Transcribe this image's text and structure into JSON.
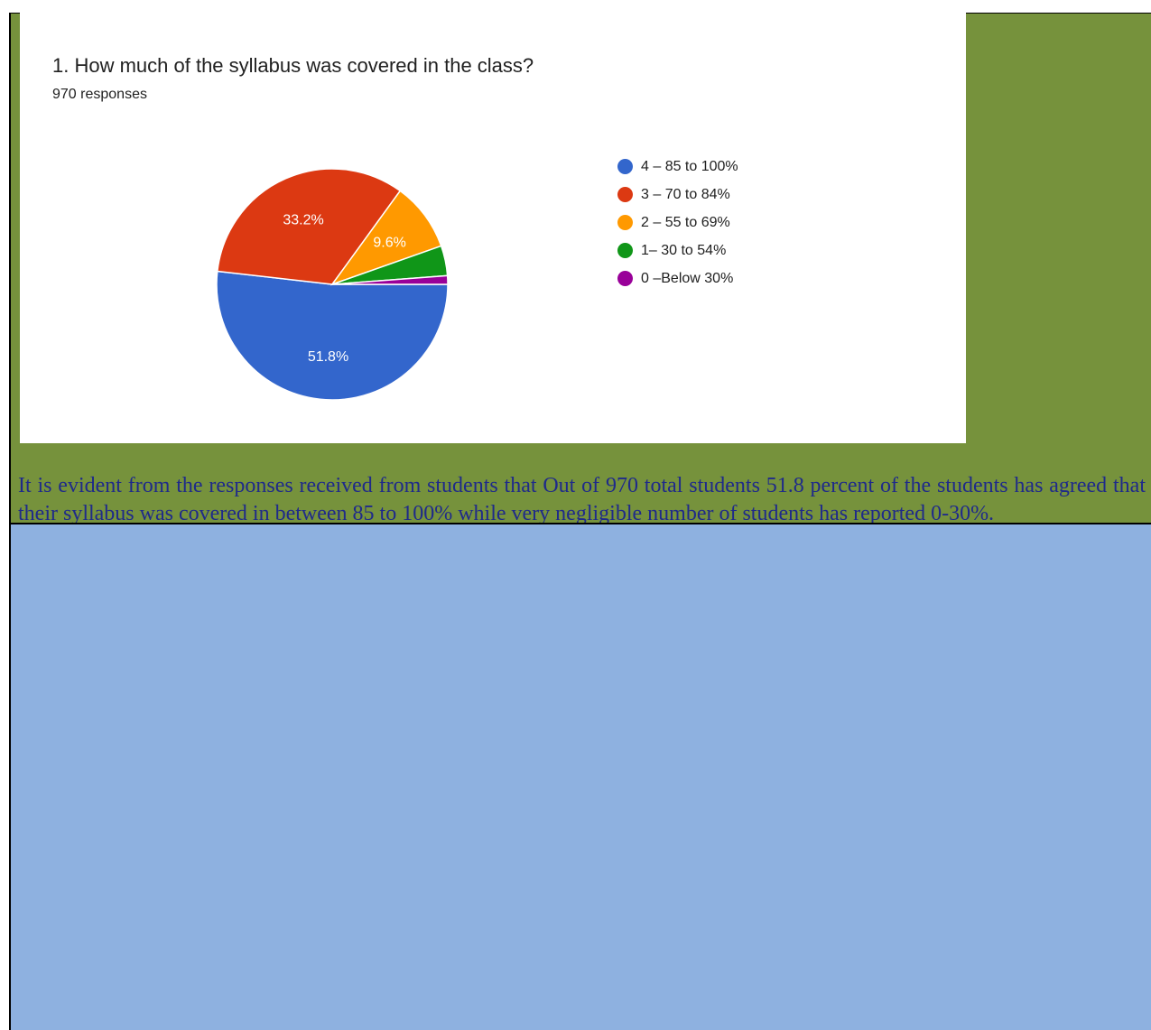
{
  "chart_data": {
    "type": "pie",
    "title": "1. How much of the syllabus was covered in the class?",
    "subtitle": "970 responses",
    "legend_position": "right",
    "slices": [
      {
        "label": "4 – 85 to 100%",
        "value": 51.8,
        "display": "51.8%",
        "color": "#3366cc"
      },
      {
        "label": "3 – 70 to 84%",
        "value": 33.2,
        "display": "33.2%",
        "color": "#dc3912"
      },
      {
        "label": "2 – 55 to 69%",
        "value": 9.6,
        "display": "9.6%",
        "color": "#ff9900"
      },
      {
        "label": "1– 30 to 54%",
        "value": 4.2,
        "display": "",
        "color": "#109618"
      },
      {
        "label": "0 –Below 30%",
        "value": 1.2,
        "display": "",
        "color": "#990099"
      }
    ]
  },
  "document": {
    "summary": "It is evident from the responses received from students that Out of 970  total students 51.8 percent of the students has agreed that their syllabus was covered in between 85 to 100% while very negligible number of students has reported 0-30%."
  },
  "colors": {
    "green_panel": "#76923c",
    "blue_panel": "#8eb1e0",
    "text_blue": "#1f2a8a"
  }
}
